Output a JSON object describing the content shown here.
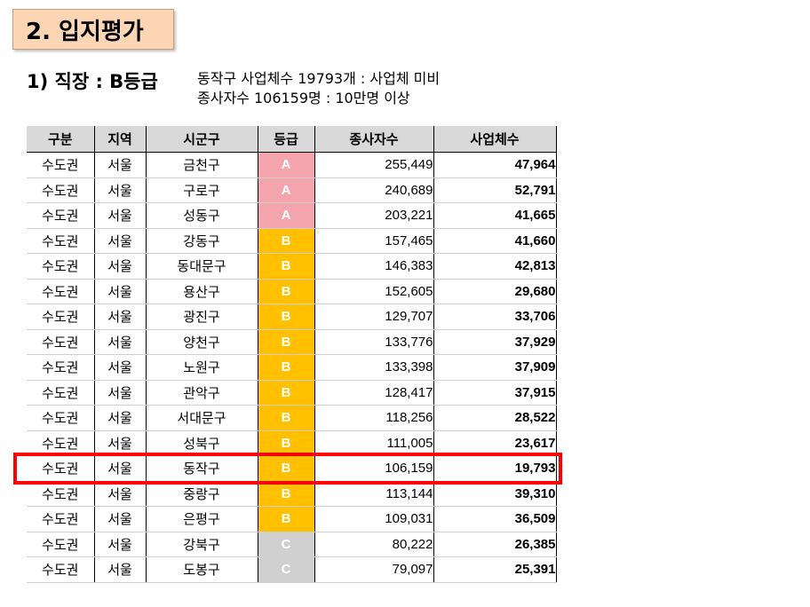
{
  "title": "2. 입지평가",
  "subtitle": "1) 직장 : B등급",
  "notes": [
    "동작구 사업체수 19793개 : 사업체 미비",
    "종사자수 106159명 : 10만명 이상"
  ],
  "table": {
    "headers": [
      "구분",
      "지역",
      "시군구",
      "등급",
      "종사자수",
      "사업체수"
    ],
    "rows": [
      [
        "수도권",
        "서울",
        "금천구",
        "A",
        "255,449",
        "47,964"
      ],
      [
        "수도권",
        "서울",
        "구로구",
        "A",
        "240,689",
        "52,791"
      ],
      [
        "수도권",
        "서울",
        "성동구",
        "A",
        "203,221",
        "41,665"
      ],
      [
        "수도권",
        "서울",
        "강동구",
        "B",
        "157,465",
        "41,660"
      ],
      [
        "수도권",
        "서울",
        "동대문구",
        "B",
        "146,383",
        "42,813"
      ],
      [
        "수도권",
        "서울",
        "용산구",
        "B",
        "152,605",
        "29,680"
      ],
      [
        "수도권",
        "서울",
        "광진구",
        "B",
        "129,707",
        "33,706"
      ],
      [
        "수도권",
        "서울",
        "양천구",
        "B",
        "133,776",
        "37,929"
      ],
      [
        "수도권",
        "서울",
        "노원구",
        "B",
        "133,398",
        "37,909"
      ],
      [
        "수도권",
        "서울",
        "관악구",
        "B",
        "128,417",
        "37,915"
      ],
      [
        "수도권",
        "서울",
        "서대문구",
        "B",
        "118,256",
        "28,522"
      ],
      [
        "수도권",
        "서울",
        "성북구",
        "B",
        "111,005",
        "23,617"
      ],
      [
        "수도권",
        "서울",
        "동작구",
        "B",
        "106,159",
        "19,793"
      ],
      [
        "수도권",
        "서울",
        "중랑구",
        "B",
        "113,144",
        "39,310"
      ],
      [
        "수도권",
        "서울",
        "은평구",
        "B",
        "109,031",
        "36,509"
      ],
      [
        "수도권",
        "서울",
        "강북구",
        "C",
        "80,222",
        "26,385"
      ],
      [
        "수도권",
        "서울",
        "도봉구",
        "C",
        "79,097",
        "25,391"
      ]
    ],
    "highlighted_row": 12
  },
  "colors": {
    "title_bg": "#fcd5b5",
    "header_bg": "#d9d9d9",
    "grade_A": "#f4a4ad",
    "grade_B": "#ffc000",
    "grade_C": "#d0d0d0",
    "highlight": "#ff0000"
  }
}
